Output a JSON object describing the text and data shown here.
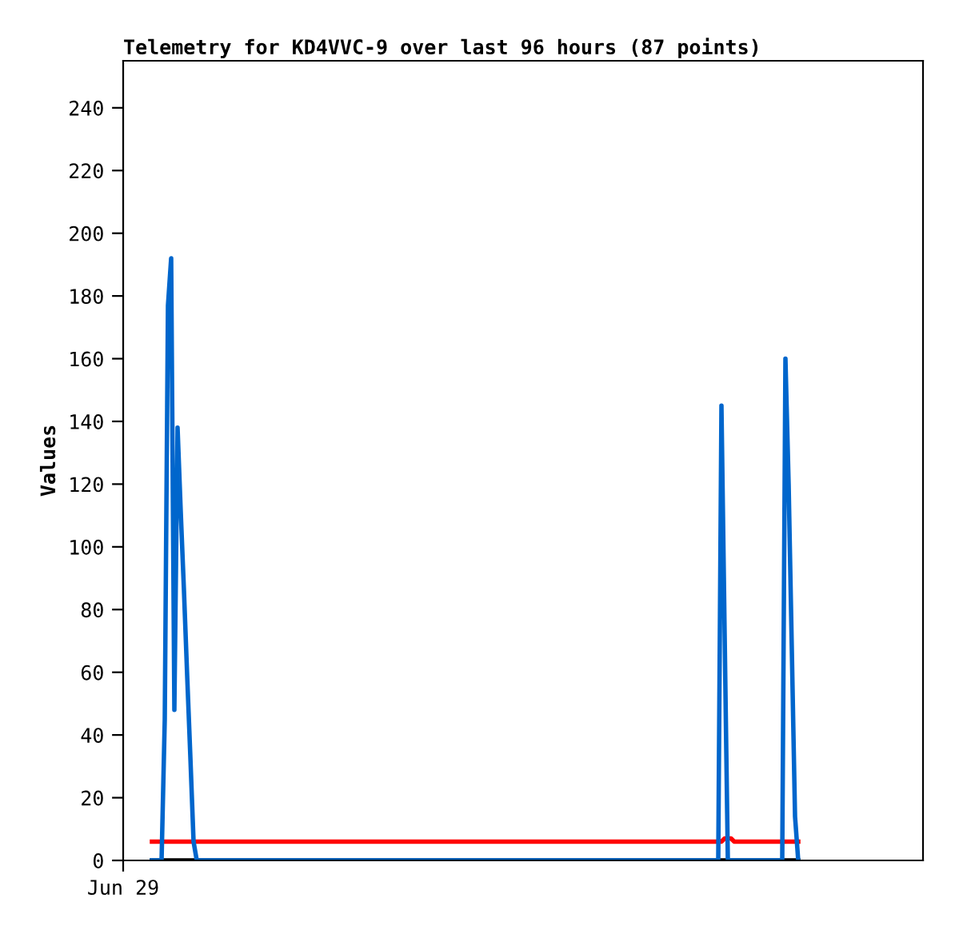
{
  "chart_data": {
    "type": "line",
    "title": "Telemetry for KD4VVC-9 over last 96 hours (87 points)",
    "ylabel": "Values",
    "categories": [
      "Jun 29",
      null,
      null,
      null,
      null,
      null,
      null,
      null,
      null,
      null,
      null,
      null,
      null,
      null,
      null,
      null,
      null,
      null,
      null,
      null,
      null,
      null,
      null,
      null,
      null,
      null,
      null,
      null,
      null,
      null,
      null,
      null,
      null,
      null,
      null,
      null,
      null,
      null,
      null,
      null,
      null,
      null,
      null,
      null,
      null,
      null,
      null,
      null,
      null,
      null,
      null,
      null,
      null,
      null,
      null,
      null,
      null,
      null,
      null,
      null,
      null,
      null,
      null,
      null,
      null,
      null,
      null,
      null,
      null,
      null,
      null,
      null,
      null,
      null,
      null,
      null,
      null,
      null,
      null,
      null,
      null,
      null,
      null,
      null,
      null,
      null,
      null,
      null,
      null,
      null,
      null,
      null,
      null,
      null,
      null,
      null,
      null,
      null,
      null,
      null,
      null,
      null,
      null,
      null,
      null,
      null,
      null,
      null,
      null,
      null,
      null,
      null,
      null,
      null,
      null,
      null,
      null,
      null,
      null,
      null,
      null,
      null,
      null,
      null,
      null,
      null,
      null,
      null,
      null,
      null,
      null,
      null,
      null,
      null,
      null,
      null,
      null,
      null,
      null,
      null,
      null,
      null,
      null,
      null,
      null,
      null,
      null,
      null,
      null,
      null,
      null,
      null,
      null,
      null,
      null,
      null,
      null,
      null,
      null,
      null,
      null,
      null,
      null,
      null,
      null,
      null,
      null,
      null,
      null,
      null,
      null,
      null,
      null,
      null,
      null,
      null,
      null,
      null,
      null,
      null,
      null,
      null,
      null,
      null,
      null,
      null,
      null,
      null,
      null,
      null,
      null,
      null,
      null,
      null,
      null,
      null,
      null,
      null,
      null,
      null,
      null,
      null,
      null,
      null,
      null,
      null,
      null,
      null,
      null,
      null,
      null,
      null,
      null,
      null,
      null,
      null,
      null,
      null,
      null,
      null,
      null,
      null,
      null,
      null,
      null,
      null,
      null,
      null,
      null,
      null,
      null,
      null,
      null,
      null,
      null,
      null,
      null,
      null,
      null,
      null,
      null,
      null,
      null,
      null,
      null,
      null,
      null,
      null,
      null,
      null,
      null
    ],
    "ylim": [
      0,
      255
    ],
    "yticks": [
      0,
      20,
      40,
      60,
      80,
      100,
      120,
      140,
      160,
      180,
      200,
      220,
      240
    ],
    "grid": false,
    "marker": "none",
    "line_style": "solid",
    "series": [
      {
        "color": "#000000",
        "values": [
          null,
          null,
          null,
          null,
          null,
          null,
          null,
          null,
          null,
          0,
          0,
          0,
          0,
          0,
          0,
          0,
          0,
          0,
          0,
          0,
          0,
          0,
          0,
          0,
          0,
          0,
          0,
          0,
          0,
          0,
          0,
          0,
          0,
          0,
          0,
          0,
          0,
          0,
          0,
          0,
          0,
          0,
          0,
          0,
          0,
          0,
          0,
          0,
          0,
          0,
          0,
          0,
          0,
          0,
          0,
          0,
          0,
          0,
          0,
          0,
          0,
          0,
          0,
          0,
          0,
          0,
          0,
          0,
          0,
          0,
          0,
          0,
          0,
          0,
          0,
          0,
          0,
          0,
          0,
          0,
          0,
          0,
          0,
          0,
          0,
          0,
          0,
          0,
          0,
          0,
          0,
          0,
          0,
          0,
          0,
          0,
          0,
          0,
          0,
          0,
          0,
          0,
          0,
          0,
          0,
          0,
          0,
          0,
          0,
          0,
          0,
          0,
          0,
          0,
          0,
          0,
          0,
          0,
          0,
          0,
          0,
          0,
          0,
          0,
          0,
          0,
          0,
          0,
          0,
          0,
          0,
          0,
          0,
          0,
          0,
          0,
          0,
          0,
          0,
          0,
          0,
          0,
          0,
          0,
          0,
          0,
          0,
          0,
          0,
          0,
          0,
          0,
          0,
          0,
          0,
          0,
          0,
          0,
          0,
          0,
          0,
          0,
          0,
          0,
          0,
          0,
          0,
          0,
          0,
          0,
          0,
          0,
          0,
          0,
          0,
          0,
          0,
          0,
          0,
          0,
          0,
          0,
          0,
          0,
          0,
          0,
          0,
          0,
          0,
          0,
          0,
          0,
          0,
          0,
          0,
          0,
          0,
          0,
          0,
          0,
          0,
          0,
          0,
          0,
          0,
          0,
          0,
          0,
          0,
          0,
          0,
          0,
          null,
          null,
          null,
          null,
          null,
          null,
          null,
          null,
          null,
          null,
          null,
          null,
          null,
          null,
          null,
          null,
          null,
          null,
          null,
          null,
          null,
          null,
          null,
          null,
          null,
          null,
          null,
          null,
          null,
          null,
          null,
          null,
          null,
          null,
          null,
          null,
          null,
          null,
          null
        ]
      },
      {
        "color": "#ff0000",
        "values": [
          null,
          null,
          null,
          null,
          null,
          null,
          null,
          null,
          null,
          6,
          6,
          6,
          6,
          6,
          6,
          6,
          6,
          6,
          6,
          6,
          6,
          6,
          6,
          6,
          6,
          6,
          6,
          6,
          6,
          6,
          6,
          6,
          6,
          6,
          6,
          6,
          6,
          6,
          6,
          6,
          6,
          6,
          6,
          6,
          6,
          6,
          6,
          6,
          6,
          6,
          6,
          6,
          6,
          6,
          6,
          6,
          6,
          6,
          6,
          6,
          6,
          6,
          6,
          6,
          6,
          6,
          6,
          6,
          6,
          6,
          6,
          6,
          6,
          6,
          6,
          6,
          6,
          6,
          6,
          6,
          6,
          6,
          6,
          6,
          6,
          6,
          6,
          6,
          6,
          6,
          6,
          6,
          6,
          6,
          6,
          6,
          6,
          6,
          6,
          6,
          6,
          6,
          6,
          6,
          6,
          6,
          6,
          6,
          6,
          6,
          6,
          6,
          6,
          6,
          6,
          6,
          6,
          6,
          6,
          6,
          6,
          6,
          6,
          6,
          6,
          6,
          6,
          6,
          6,
          6,
          6,
          6,
          6,
          6,
          6,
          6,
          6,
          6,
          6,
          6,
          6,
          6,
          6,
          6,
          6,
          6,
          6,
          6,
          6,
          6,
          6,
          6,
          6,
          6,
          6,
          6,
          6,
          6,
          6,
          6,
          6,
          6,
          6,
          6,
          6,
          6,
          6,
          6,
          6,
          6,
          6,
          6,
          6,
          6,
          6,
          6,
          6,
          6,
          6,
          6,
          6,
          6,
          6,
          6,
          6,
          6,
          6,
          6,
          7,
          7,
          7,
          6,
          6,
          6,
          6,
          6,
          6,
          6,
          6,
          6,
          6,
          6,
          6,
          6,
          6,
          6,
          6,
          6,
          6,
          6,
          6,
          6,
          null,
          null,
          null,
          null,
          null,
          null,
          null,
          null,
          null,
          null,
          null,
          null,
          null,
          null,
          null,
          null,
          null,
          null,
          null,
          null,
          null,
          null,
          null,
          null,
          null,
          null,
          null,
          null,
          null,
          null,
          null,
          null,
          null,
          null,
          null,
          null,
          null,
          null,
          null
        ]
      },
      {
        "color": "#0066cc",
        "values": [
          null,
          null,
          null,
          null,
          null,
          null,
          null,
          null,
          null,
          0,
          0,
          0,
          0,
          45,
          177,
          192,
          48,
          138,
          111,
          86,
          59,
          33,
          6,
          0,
          0,
          0,
          0,
          0,
          0,
          0,
          0,
          0,
          0,
          0,
          0,
          0,
          0,
          0,
          0,
          0,
          0,
          0,
          0,
          0,
          0,
          0,
          0,
          0,
          0,
          0,
          0,
          0,
          0,
          0,
          0,
          0,
          0,
          0,
          0,
          0,
          0,
          0,
          0,
          0,
          0,
          0,
          0,
          0,
          0,
          0,
          0,
          0,
          0,
          0,
          0,
          0,
          0,
          0,
          0,
          0,
          0,
          0,
          0,
          0,
          0,
          0,
          0,
          0,
          0,
          0,
          0,
          0,
          0,
          0,
          0,
          0,
          0,
          0,
          0,
          0,
          0,
          0,
          0,
          0,
          0,
          0,
          0,
          0,
          0,
          0,
          0,
          0,
          0,
          0,
          0,
          0,
          0,
          0,
          0,
          0,
          0,
          0,
          0,
          0,
          0,
          0,
          0,
          0,
          0,
          0,
          0,
          0,
          0,
          0,
          0,
          0,
          0,
          0,
          0,
          0,
          0,
          0,
          0,
          0,
          0,
          0,
          0,
          0,
          0,
          0,
          0,
          0,
          0,
          0,
          0,
          0,
          0,
          0,
          0,
          0,
          0,
          0,
          0,
          0,
          0,
          0,
          0,
          0,
          0,
          0,
          0,
          0,
          0,
          0,
          0,
          0,
          0,
          0,
          0,
          0,
          0,
          0,
          0,
          0,
          0,
          0,
          0,
          145,
          72,
          0,
          0,
          0,
          0,
          0,
          0,
          0,
          0,
          0,
          0,
          0,
          0,
          0,
          0,
          0,
          0,
          0,
          0,
          160,
          120,
          67,
          14,
          0,
          null,
          null,
          null,
          null,
          null,
          null,
          null,
          null,
          null,
          null,
          null,
          null,
          null,
          null,
          null,
          null,
          null,
          null,
          null,
          null,
          null,
          null,
          null,
          null,
          null,
          null,
          null,
          null,
          null,
          null,
          null,
          null,
          null,
          null,
          null,
          null,
          null,
          null,
          null
        ]
      }
    ]
  }
}
